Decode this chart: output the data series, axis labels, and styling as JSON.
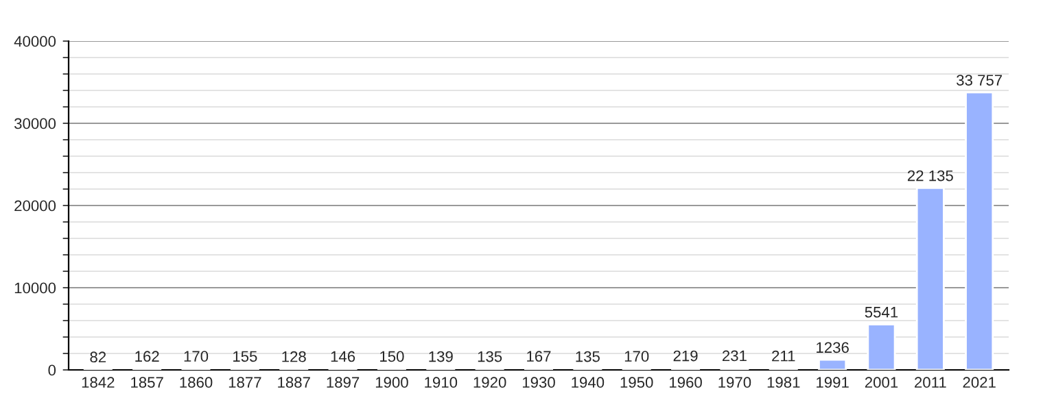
{
  "chart_data": {
    "type": "bar",
    "categories": [
      "1842",
      "1857",
      "1860",
      "1877",
      "1887",
      "1897",
      "1900",
      "1910",
      "1920",
      "1930",
      "1940",
      "1950",
      "1960",
      "1970",
      "1981",
      "1991",
      "2001",
      "2011",
      "2021"
    ],
    "values": [
      82,
      162,
      170,
      155,
      128,
      146,
      150,
      139,
      135,
      167,
      135,
      170,
      219,
      231,
      211,
      1236,
      5541,
      22135,
      33757
    ],
    "value_labels": [
      "82",
      "162",
      "170",
      "155",
      "128",
      "146",
      "150",
      "139",
      "135",
      "167",
      "135",
      "170",
      "219",
      "231",
      "211",
      "1236",
      "5541",
      "22 135",
      "33 757"
    ],
    "color": "#99b3ff",
    "ylim": [
      0,
      40000
    ],
    "yticks": [
      0,
      {
        "value": 2000,
        "label": null
      },
      {
        "value": 4000,
        "label": null
      },
      {
        "value": 6000,
        "label": null
      },
      {
        "value": 8000,
        "label": null
      },
      10000,
      {
        "value": 12000,
        "label": null
      },
      {
        "value": 14000,
        "label": null
      },
      {
        "value": 16000,
        "label": null
      },
      {
        "value": 18000,
        "label": null
      },
      20000,
      {
        "value": 22000,
        "label": null
      },
      {
        "value": 24000,
        "label": null
      },
      {
        "value": 26000,
        "label": null
      },
      {
        "value": 28000,
        "label": null
      },
      30000,
      {
        "value": 32000,
        "label": null
      },
      {
        "value": 34000,
        "label": null
      },
      {
        "value": 36000,
        "label": null
      },
      {
        "value": 38000,
        "label": null
      },
      40000
    ],
    "grid": "y"
  }
}
